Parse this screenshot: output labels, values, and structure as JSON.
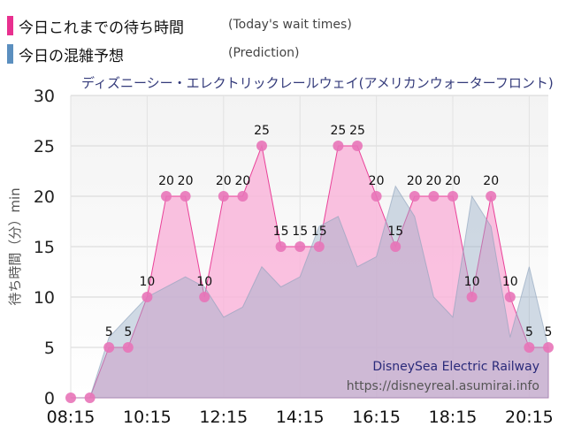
{
  "legend": [
    {
      "label": "今日これまでの待ち時間",
      "sub": "(Today's wait times)",
      "color": "#e8308f"
    },
    {
      "label": "今日の混雑予想",
      "sub": "(Prediction)",
      "color": "#5b8fbf"
    }
  ],
  "chart_data": {
    "type": "area",
    "title": "ディズニーシー・エレクトリックレールウェイ(アメリカンウォーターフロント)",
    "ylabel": "待ち時間（分）min",
    "ylim": [
      0,
      30
    ],
    "yticks": [
      "0",
      "5",
      "10",
      "15",
      "20",
      "25",
      "30"
    ],
    "xlim": [
      "08:15",
      "20:45"
    ],
    "xticks": [
      "08:15",
      "10:15",
      "12:15",
      "14:15",
      "16:15",
      "18:15",
      "20:15"
    ],
    "series": [
      {
        "name": "今日これまでの待ち時間",
        "color": "#e8308f",
        "x": [
          "08:15",
          "08:45",
          "09:15",
          "09:45",
          "10:15",
          "10:45",
          "11:15",
          "11:45",
          "12:15",
          "12:45",
          "13:15",
          "13:45",
          "14:15",
          "14:45",
          "15:15",
          "15:45",
          "16:15",
          "16:45",
          "17:15",
          "17:45",
          "18:15",
          "18:45",
          "19:15",
          "19:45",
          "20:15",
          "20:45"
        ],
        "values": [
          0,
          0,
          5,
          5,
          10,
          20,
          20,
          10,
          20,
          20,
          25,
          15,
          15,
          15,
          25,
          25,
          20,
          15,
          20,
          20,
          20,
          10,
          20,
          10,
          5,
          5
        ],
        "labels": [
          "",
          "",
          "5",
          "5",
          "10",
          "20",
          "20",
          "10",
          "20",
          "20",
          "25",
          "15",
          "15",
          "15",
          "25",
          "25",
          "20",
          "15",
          "20",
          "20",
          "20",
          "10",
          "20",
          "10",
          "5",
          "5"
        ]
      },
      {
        "name": "今日の混雑予想",
        "color": "#5b8fbf",
        "x": [
          "08:15",
          "08:45",
          "09:15",
          "09:45",
          "10:15",
          "10:45",
          "11:15",
          "11:45",
          "12:15",
          "12:45",
          "13:15",
          "13:45",
          "14:15",
          "14:45",
          "15:15",
          "15:45",
          "16:15",
          "16:45",
          "17:15",
          "17:45",
          "18:15",
          "18:45",
          "19:15",
          "19:45",
          "20:15",
          "20:45"
        ],
        "values": [
          0,
          0,
          6,
          8,
          10,
          11,
          12,
          11,
          8,
          9,
          13,
          11,
          12,
          17,
          18,
          13,
          14,
          21,
          18,
          10,
          8,
          20,
          17,
          6,
          13,
          5
        ]
      }
    ]
  },
  "source": {
    "name": "DisneySea Electric Railway",
    "url": "https://disneyreal.asumirai.info"
  }
}
